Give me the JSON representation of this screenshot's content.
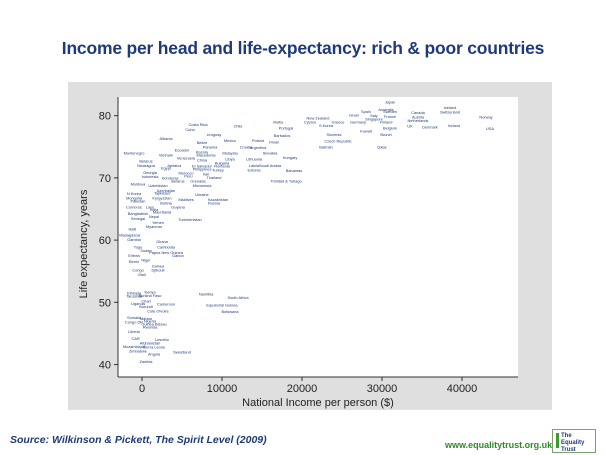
{
  "title": "Income per head and life-expectancy: rich & poor countries",
  "source": "Source: Wilkinson & Pickett, The Spirit Level (2009)",
  "website": "www.equalitytrust.org.uk",
  "logo_text": "The Equality Trust",
  "colors": {
    "title": "#1f3a7a",
    "panel": "#dfdfdf",
    "plot_area": "#ffffff",
    "points": "#1f3a7a",
    "url": "#2f8a2a"
  },
  "chart_data": {
    "type": "scatter",
    "title": "Income per head and life-expectancy: rich & poor countries",
    "xlabel": "National Income per person ($)",
    "ylabel": "Life expectancy, years",
    "xlim": [
      -3000,
      47000
    ],
    "ylim": [
      38,
      83
    ],
    "xticks": [
      0,
      10000,
      20000,
      30000,
      40000
    ],
    "yticks": [
      40,
      50,
      60,
      70,
      80
    ],
    "grid": false,
    "points": [
      {
        "label": "Japan",
        "x": 31000,
        "y": 82.2
      },
      {
        "label": "Australia",
        "x": 30500,
        "y": 81.0
      },
      {
        "label": "Iceland",
        "x": 38500,
        "y": 81.3
      },
      {
        "label": "Spain",
        "x": 28000,
        "y": 80.7
      },
      {
        "label": "Sweden",
        "x": 31000,
        "y": 80.7
      },
      {
        "label": "Canada",
        "x": 34500,
        "y": 80.5
      },
      {
        "label": "Switzerland",
        "x": 38500,
        "y": 80.6
      },
      {
        "label": "Israel",
        "x": 26500,
        "y": 80.1
      },
      {
        "label": "Italy",
        "x": 29000,
        "y": 80.0
      },
      {
        "label": "France",
        "x": 31000,
        "y": 79.9
      },
      {
        "label": "Austria",
        "x": 34500,
        "y": 79.8
      },
      {
        "label": "Norway",
        "x": 43000,
        "y": 79.8
      },
      {
        "label": "New Zealand",
        "x": 22000,
        "y": 79.6
      },
      {
        "label": "Singapore",
        "x": 29000,
        "y": 79.5
      },
      {
        "label": "Netherlands",
        "x": 34500,
        "y": 79.2
      },
      {
        "label": "Germany",
        "x": 27000,
        "y": 79.0
      },
      {
        "label": "Finland",
        "x": 30500,
        "y": 79.0
      },
      {
        "label": "Malta",
        "x": 17000,
        "y": 79.0
      },
      {
        "label": "Cyprus",
        "x": 21000,
        "y": 79.0
      },
      {
        "label": "Greece",
        "x": 24500,
        "y": 79.0
      },
      {
        "label": "Chile",
        "x": 12000,
        "y": 78.3
      },
      {
        "label": "Ireland",
        "x": 39000,
        "y": 78.4
      },
      {
        "label": "Costa Rica",
        "x": 7000,
        "y": 78.6
      },
      {
        "label": "Cuba",
        "x": 6000,
        "y": 77.8
      },
      {
        "label": "Portugal",
        "x": 18000,
        "y": 78.0
      },
      {
        "label": "S.Korea",
        "x": 23000,
        "y": 78.4
      },
      {
        "label": "UK",
        "x": 33500,
        "y": 78.3
      },
      {
        "label": "Denmark",
        "x": 36000,
        "y": 78.2
      },
      {
        "label": "USA",
        "x": 43500,
        "y": 77.9
      },
      {
        "label": "Belgium",
        "x": 31000,
        "y": 78.0
      },
      {
        "label": "Kuwait",
        "x": 28000,
        "y": 77.5
      },
      {
        "label": "Slovenia",
        "x": 24000,
        "y": 77.0
      },
      {
        "label": "Brunei",
        "x": 30500,
        "y": 77.0
      },
      {
        "label": "Uruguay",
        "x": 9000,
        "y": 77.0
      },
      {
        "label": "Barbados",
        "x": 17500,
        "y": 76.8
      },
      {
        "label": "Albania",
        "x": 3000,
        "y": 76.3
      },
      {
        "label": "Mexico",
        "x": 11000,
        "y": 76.0
      },
      {
        "label": "Poland",
        "x": 14500,
        "y": 76.0
      },
      {
        "label": "Oman",
        "x": 16500,
        "y": 75.8
      },
      {
        "label": "Czech Republic",
        "x": 24500,
        "y": 75.9
      },
      {
        "label": "Belize",
        "x": 7500,
        "y": 75.7
      },
      {
        "label": "Panama",
        "x": 8500,
        "y": 75.0
      },
      {
        "label": "Croatia",
        "x": 13000,
        "y": 75.0
      },
      {
        "label": "Argentina",
        "x": 14500,
        "y": 74.9
      },
      {
        "label": "Bahrain",
        "x": 23000,
        "y": 75.0
      },
      {
        "label": "Qatar",
        "x": 30000,
        "y": 75.0
      },
      {
        "label": "Ecuador",
        "x": 5000,
        "y": 74.5
      },
      {
        "label": "Bosnia",
        "x": 7500,
        "y": 74.2
      },
      {
        "label": "Malaysia",
        "x": 11000,
        "y": 74.0
      },
      {
        "label": "Slovakia",
        "x": 16000,
        "y": 74.0
      },
      {
        "label": "Montenegro",
        "x": -1000,
        "y": 74.0
      },
      {
        "label": "Vietnam",
        "x": 3000,
        "y": 73.7
      },
      {
        "label": "Macedonia",
        "x": 8000,
        "y": 73.7
      },
      {
        "label": "Hungary",
        "x": 18500,
        "y": 73.3
      },
      {
        "label": "Venezuela",
        "x": 5500,
        "y": 73.2
      },
      {
        "label": "China",
        "x": 7500,
        "y": 72.9
      },
      {
        "label": "Libya",
        "x": 11000,
        "y": 73.0
      },
      {
        "label": "Lithuania",
        "x": 14000,
        "y": 73.0
      },
      {
        "label": "Belarus",
        "x": 500,
        "y": 72.7
      },
      {
        "label": "Bulgaria",
        "x": 10000,
        "y": 72.4
      },
      {
        "label": "Nicaragua",
        "x": 500,
        "y": 72.0
      },
      {
        "label": "Jamaica",
        "x": 4000,
        "y": 72.0
      },
      {
        "label": "El Salvador",
        "x": 7500,
        "y": 71.9
      },
      {
        "label": "Romania",
        "x": 10000,
        "y": 71.9
      },
      {
        "label": "Latvia",
        "x": 14000,
        "y": 72.0
      },
      {
        "label": "Saudi Arabia",
        "x": 16000,
        "y": 72.0
      },
      {
        "label": "Egypt",
        "x": 3000,
        "y": 71.6
      },
      {
        "label": "Philippines",
        "x": 7500,
        "y": 71.4
      },
      {
        "label": "Turkey",
        "x": 9500,
        "y": 71.3
      },
      {
        "label": "Estonia",
        "x": 14000,
        "y": 71.3
      },
      {
        "label": "Bahamas",
        "x": 19000,
        "y": 71.2
      },
      {
        "label": "Georgia",
        "x": 1000,
        "y": 70.9
      },
      {
        "label": "Morocco",
        "x": 5500,
        "y": 70.8
      },
      {
        "label": "Iran",
        "x": 8000,
        "y": 70.6
      },
      {
        "label": "Indonesia",
        "x": 1000,
        "y": 70.2
      },
      {
        "label": "Honduras",
        "x": 3500,
        "y": 70.0
      },
      {
        "label": "Peru",
        "x": 5800,
        "y": 70.3
      },
      {
        "label": "Thailand",
        "x": 9000,
        "y": 70.1
      },
      {
        "label": "Belarus",
        "x": 4500,
        "y": 69.5
      },
      {
        "label": "Grenada",
        "x": 7000,
        "y": 69.5
      },
      {
        "label": "Trinidad & Tobago",
        "x": 18000,
        "y": 69.5
      },
      {
        "label": "Moldova",
        "x": -500,
        "y": 69.0
      },
      {
        "label": "Uzbekistan",
        "x": 2000,
        "y": 68.8
      },
      {
        "label": "Micronesia",
        "x": 7500,
        "y": 68.8
      },
      {
        "label": "Azerbaijan",
        "x": 3000,
        "y": 68.0
      },
      {
        "label": "N.Korea",
        "x": -1000,
        "y": 67.5
      },
      {
        "label": "Tajikistan",
        "x": 2500,
        "y": 67.6
      },
      {
        "label": "Ukraine",
        "x": 7500,
        "y": 67.3
      },
      {
        "label": "Mongolia",
        "x": -1000,
        "y": 66.8
      },
      {
        "label": "Kyrgyzstan",
        "x": 2500,
        "y": 66.8
      },
      {
        "label": "Maldives",
        "x": 5500,
        "y": 66.5
      },
      {
        "label": "Kazakhstan",
        "x": 9500,
        "y": 66.5
      },
      {
        "label": "Pakistan",
        "x": -500,
        "y": 66.3
      },
      {
        "label": "Bolivia",
        "x": 3000,
        "y": 66.0
      },
      {
        "label": "Russia",
        "x": 9000,
        "y": 66.0
      },
      {
        "label": "Comoros",
        "x": -1000,
        "y": 65.3
      },
      {
        "label": "Laos",
        "x": 1000,
        "y": 65.3
      },
      {
        "label": "Guyana",
        "x": 4500,
        "y": 65.3
      },
      {
        "label": "India",
        "x": 1500,
        "y": 64.9
      },
      {
        "label": "Mauritania",
        "x": 2500,
        "y": 64.5
      },
      {
        "label": "Bangladesh",
        "x": -500,
        "y": 64.3
      },
      {
        "label": "Nepal",
        "x": 1500,
        "y": 63.8
      },
      {
        "label": "Senegal",
        "x": -500,
        "y": 63.5
      },
      {
        "label": "Turkmenistan",
        "x": 6000,
        "y": 63.3
      },
      {
        "label": "Yemen",
        "x": 2000,
        "y": 62.8
      },
      {
        "label": "Myanmar",
        "x": 1500,
        "y": 62.2
      },
      {
        "label": "Haiti",
        "x": -1200,
        "y": 61.8
      },
      {
        "label": "Madagascar",
        "x": -1500,
        "y": 60.8
      },
      {
        "label": "Gambia",
        "x": -1000,
        "y": 60.1
      },
      {
        "label": "Ghana",
        "x": 2500,
        "y": 59.8
      },
      {
        "label": "Togo",
        "x": -500,
        "y": 58.9
      },
      {
        "label": "Cambodia",
        "x": 3000,
        "y": 58.9
      },
      {
        "label": "Sudan",
        "x": 500,
        "y": 58.3
      },
      {
        "label": "Papua New Guinea",
        "x": 3000,
        "y": 58.0
      },
      {
        "label": "Eritrea",
        "x": -1000,
        "y": 57.5
      },
      {
        "label": "Gabon",
        "x": 4500,
        "y": 57.5
      },
      {
        "label": "Benin",
        "x": -1000,
        "y": 56.6
      },
      {
        "label": "Niger",
        "x": 500,
        "y": 56.8
      },
      {
        "label": "Guinea",
        "x": 2000,
        "y": 55.8
      },
      {
        "label": "Congo",
        "x": -500,
        "y": 55.2
      },
      {
        "label": "Djibouti",
        "x": 2000,
        "y": 55.2
      },
      {
        "label": "Mali",
        "x": 0,
        "y": 54.5
      },
      {
        "label": "Kenya",
        "x": 1000,
        "y": 51.7
      },
      {
        "label": "Ethiopia",
        "x": -1000,
        "y": 51.5
      },
      {
        "label": "Burkina Faso",
        "x": 1000,
        "y": 51.1
      },
      {
        "label": "Namibia",
        "x": 8000,
        "y": 51.3
      },
      {
        "label": "Tanzania",
        "x": -1000,
        "y": 51.0
      },
      {
        "label": "South Africa",
        "x": 12000,
        "y": 50.8
      },
      {
        "label": "Chad",
        "x": 500,
        "y": 50.2
      },
      {
        "label": "Uganda",
        "x": -500,
        "y": 49.8
      },
      {
        "label": "Burundi",
        "x": 500,
        "y": 49.3
      },
      {
        "label": "Cameroon",
        "x": 3000,
        "y": 49.7
      },
      {
        "label": "Equatorial Guinea",
        "x": 10000,
        "y": 49.6
      },
      {
        "label": "Cote d'Ivoire",
        "x": 2000,
        "y": 48.6
      },
      {
        "label": "Botswana",
        "x": 11000,
        "y": 48.5
      },
      {
        "label": "Somalia",
        "x": -1000,
        "y": 47.6
      },
      {
        "label": "Malawi",
        "x": 500,
        "y": 47.4
      },
      {
        "label": "Nigeria",
        "x": 1000,
        "y": 47.0
      },
      {
        "label": "Congo DR",
        "x": -1000,
        "y": 46.8
      },
      {
        "label": "Guinea Bissau",
        "x": 1500,
        "y": 46.5
      },
      {
        "label": "Rwanda",
        "x": 1000,
        "y": 46.0
      },
      {
        "label": "Liberia",
        "x": -1000,
        "y": 45.3
      },
      {
        "label": "CAR",
        "x": -800,
        "y": 44.2
      },
      {
        "label": "Lesotho",
        "x": 2500,
        "y": 44.0
      },
      {
        "label": "Afghanistan",
        "x": 1000,
        "y": 43.5
      },
      {
        "label": "Mozambique",
        "x": -1000,
        "y": 42.9
      },
      {
        "label": "Sierra Leone",
        "x": 1500,
        "y": 42.8
      },
      {
        "label": "Zimbabwe",
        "x": -500,
        "y": 42.2
      },
      {
        "label": "Angola",
        "x": 1500,
        "y": 41.7
      },
      {
        "label": "Swaziland",
        "x": 5000,
        "y": 42.0
      },
      {
        "label": "Zambia",
        "x": 500,
        "y": 40.5
      }
    ]
  }
}
